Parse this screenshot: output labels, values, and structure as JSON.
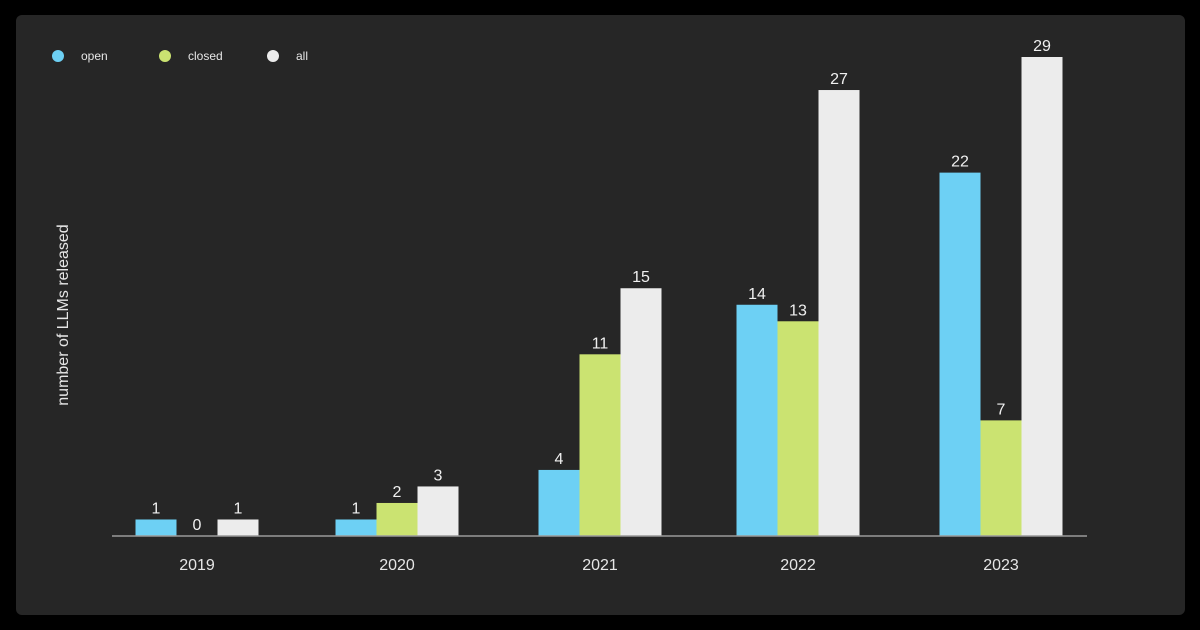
{
  "chart_data": {
    "type": "bar",
    "title": "",
    "xlabel": "",
    "ylabel": "number of LLMs released",
    "categories": [
      "2019",
      "2020",
      "2021",
      "2022",
      "2023"
    ],
    "series": [
      {
        "name": "open",
        "color": "#6dd0f4",
        "values": [
          1,
          1,
          4,
          14,
          22
        ]
      },
      {
        "name": "closed",
        "color": "#cbe371",
        "values": [
          0,
          2,
          11,
          13,
          7
        ]
      },
      {
        "name": "all",
        "color": "#ececec",
        "values": [
          1,
          3,
          15,
          27,
          29
        ]
      }
    ],
    "ylim": [
      0,
      29
    ],
    "grid": false,
    "legend": "top-left",
    "data_labels": true
  }
}
